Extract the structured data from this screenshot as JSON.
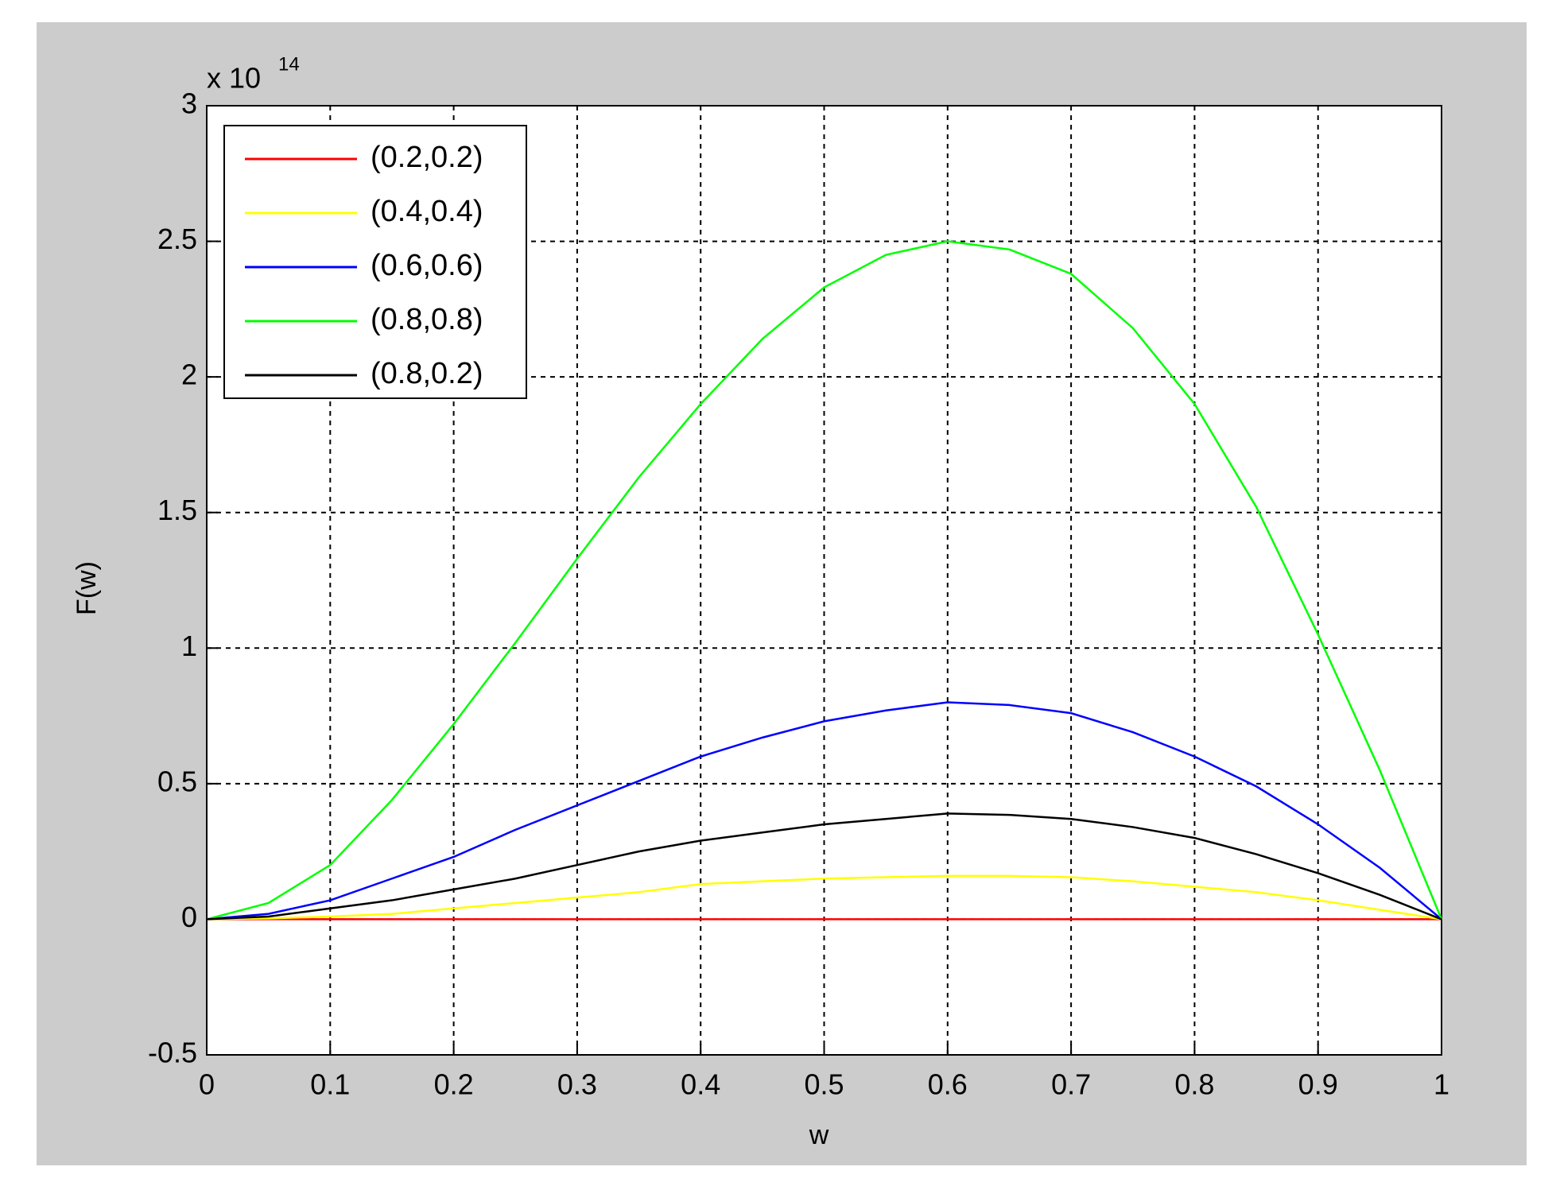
{
  "chart_data": {
    "type": "line",
    "xlabel": "w",
    "ylabel": "F(w)",
    "y_multiplier": "x 10",
    "y_multiplier_exponent": "14",
    "x": [
      0,
      0.05,
      0.1,
      0.15,
      0.2,
      0.25,
      0.3,
      0.35,
      0.4,
      0.45,
      0.5,
      0.55,
      0.6,
      0.65,
      0.7,
      0.75,
      0.8,
      0.85,
      0.9,
      0.95,
      1
    ],
    "series": [
      {
        "name": "(0.2,0.2)",
        "color": "#ff0000",
        "values": [
          0,
          0,
          0,
          0,
          0,
          0,
          0,
          0,
          0,
          0,
          0,
          0,
          0,
          0,
          0,
          0,
          0,
          0,
          0,
          0,
          0
        ]
      },
      {
        "name": "(0.4,0.4)",
        "color": "#ffff00",
        "values": [
          0,
          0.003,
          0.01,
          0.02,
          0.04,
          0.06,
          0.08,
          0.1,
          0.13,
          0.14,
          0.15,
          0.155,
          0.16,
          0.16,
          0.155,
          0.14,
          0.12,
          0.1,
          0.07,
          0.035,
          0
        ]
      },
      {
        "name": "(0.6,0.6)",
        "color": "#0000ff",
        "values": [
          0,
          0.02,
          0.07,
          0.15,
          0.23,
          0.33,
          0.42,
          0.51,
          0.6,
          0.67,
          0.73,
          0.77,
          0.8,
          0.79,
          0.76,
          0.69,
          0.6,
          0.49,
          0.35,
          0.19,
          0
        ]
      },
      {
        "name": "(0.8,0.8)",
        "color": "#00ff00",
        "values": [
          0,
          0.06,
          0.2,
          0.44,
          0.72,
          1.02,
          1.33,
          1.63,
          1.9,
          2.14,
          2.33,
          2.45,
          2.5,
          2.47,
          2.38,
          2.18,
          1.9,
          1.52,
          1.05,
          0.55,
          0
        ]
      },
      {
        "name": "(0.8,0.2)",
        "color": "#000000",
        "values": [
          0,
          0.01,
          0.04,
          0.07,
          0.11,
          0.15,
          0.2,
          0.25,
          0.29,
          0.32,
          0.35,
          0.37,
          0.39,
          0.385,
          0.37,
          0.34,
          0.3,
          0.24,
          0.17,
          0.09,
          0
        ]
      }
    ],
    "xlim": [
      0,
      1
    ],
    "xticks": [
      0,
      0.1,
      0.2,
      0.3,
      0.4,
      0.5,
      0.6,
      0.7,
      0.8,
      0.9,
      1
    ],
    "ylim": [
      -0.5,
      3
    ],
    "yticks": [
      -0.5,
      0,
      0.5,
      1,
      1.5,
      2,
      2.5,
      3
    ],
    "grid": true,
    "legend": "upper left"
  }
}
